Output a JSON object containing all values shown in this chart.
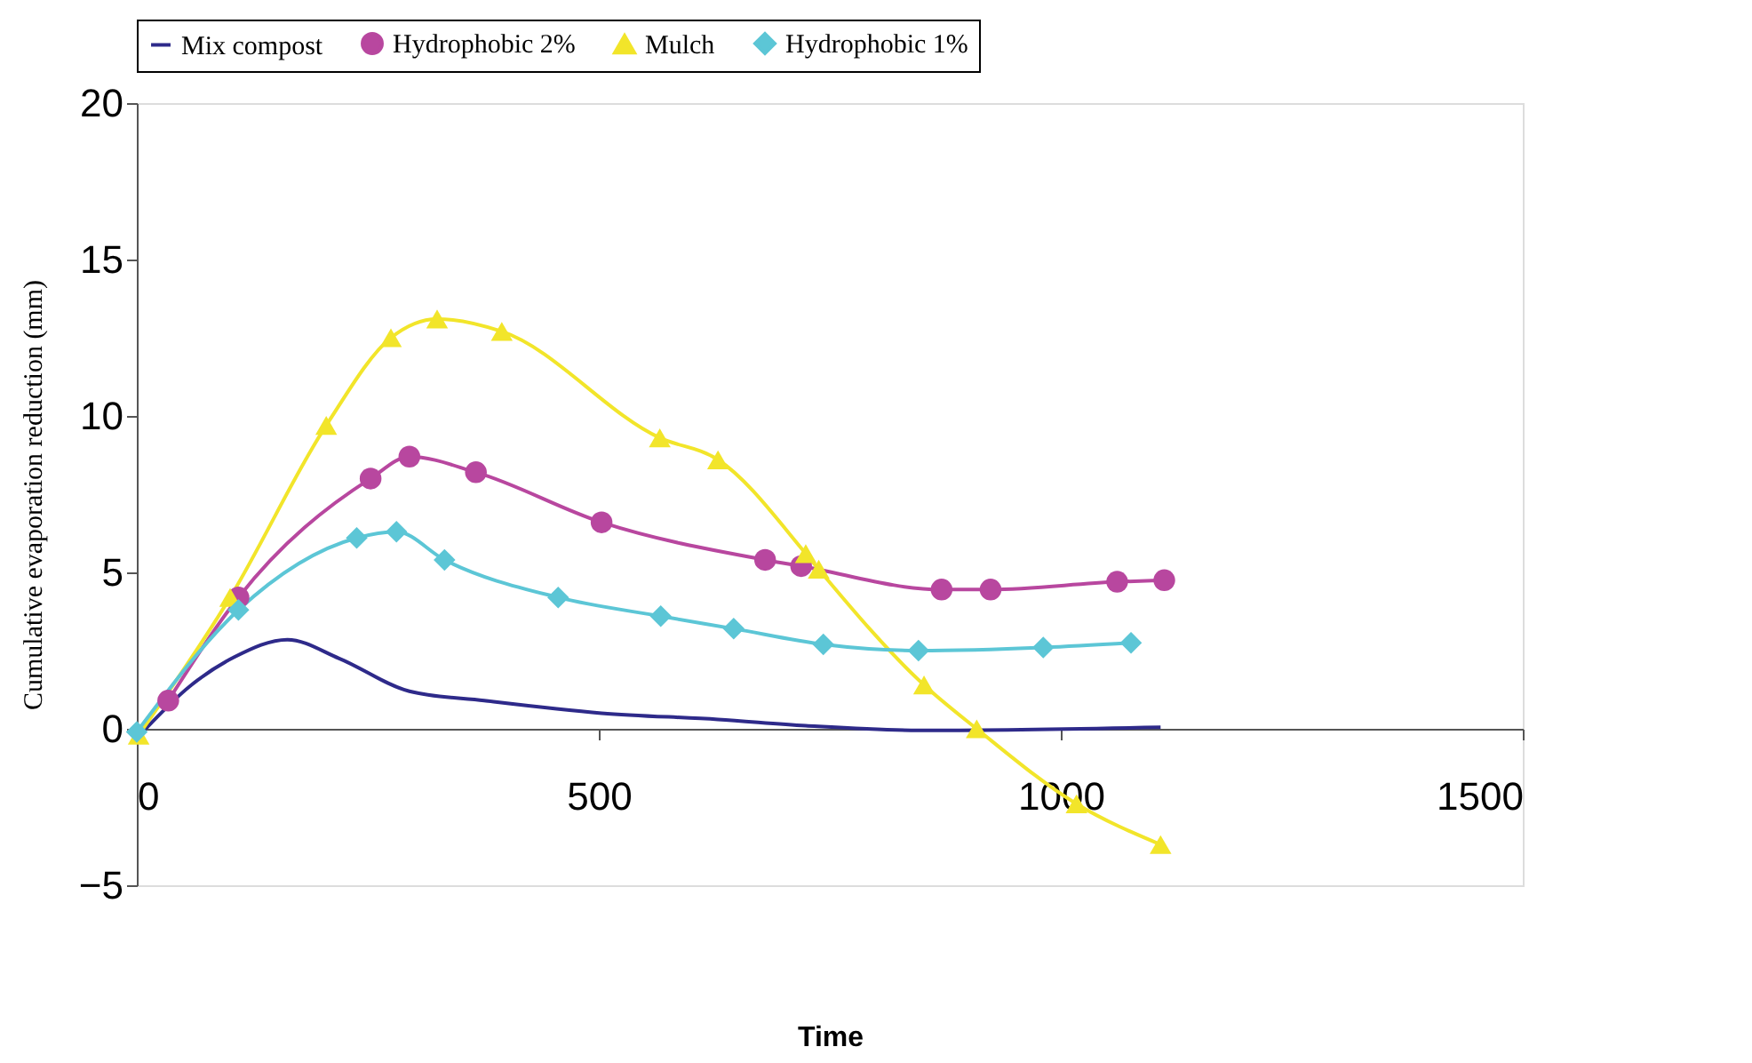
{
  "chart_data": {
    "type": "line",
    "xlabel": "Time",
    "ylabel": "Cumulative evaporation reduction (mm)",
    "xlim": [
      0,
      1500
    ],
    "xticks": [
      0,
      500,
      1000,
      1500
    ],
    "ylim": [
      -5,
      20
    ],
    "yticks": [
      -5,
      0,
      5,
      10,
      15,
      20
    ],
    "grid": false,
    "legend": "top",
    "line_style": "solid",
    "series": [
      {
        "name": "Mix compost",
        "color": "#2e2a8a",
        "marker": "none",
        "x": [
          0,
          59,
          106,
          163,
          219,
          295,
          376,
          503,
          629,
          724,
          846,
          1108
        ],
        "values": [
          -0.3,
          1.4,
          2.3,
          2.85,
          2.25,
          1.2,
          0.9,
          0.5,
          0.3,
          0.1,
          -0.05,
          0.05
        ]
      },
      {
        "name": "Hydrophobic 2%",
        "color": "#b8479f",
        "marker": "circle",
        "x": [
          34,
          110,
          253,
          295,
          367,
          503,
          680,
          719,
          871,
          924,
          1061,
          1112
        ],
        "values": [
          0.9,
          4.2,
          8.0,
          8.7,
          8.2,
          6.6,
          5.4,
          5.2,
          4.45,
          4.45,
          4.7,
          4.75
        ]
      },
      {
        "name": "Mulch",
        "color": "#f2e52a",
        "marker": "triangle",
        "x": [
          2,
          101,
          205,
          275,
          325,
          395,
          566,
          629,
          724,
          738,
          852,
          909,
          1017,
          1108
        ],
        "values": [
          -0.2,
          4.2,
          9.7,
          12.5,
          13.1,
          12.7,
          9.3,
          8.6,
          5.6,
          5.1,
          1.4,
          0,
          -2.4,
          -3.7
        ]
      },
      {
        "name": "Hydrophobic 1%",
        "color": "#5cc6d6",
        "marker": "diamond",
        "x": [
          0,
          110,
          238,
          281,
          333,
          456,
          567,
          646,
          743,
          846,
          981,
          1076
        ],
        "values": [
          -0.1,
          3.8,
          6.1,
          6.3,
          5.4,
          4.2,
          3.6,
          3.2,
          2.7,
          2.5,
          2.6,
          2.75
        ]
      }
    ]
  }
}
